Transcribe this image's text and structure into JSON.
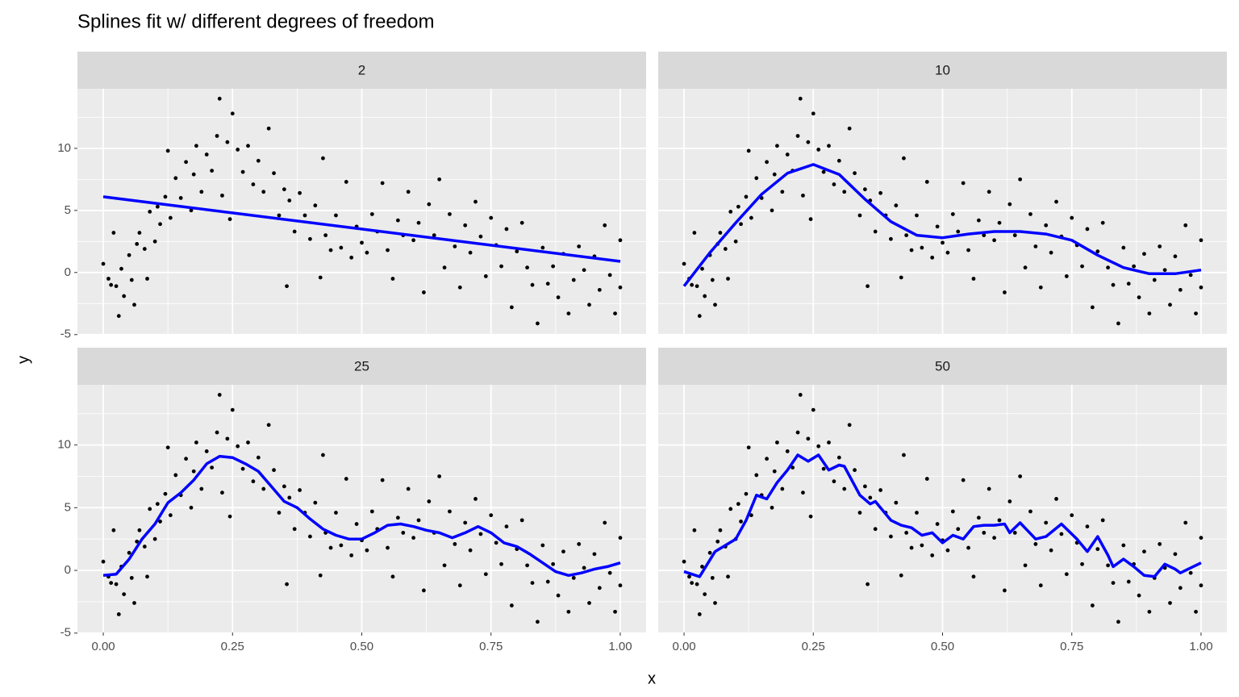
{
  "chart_data": {
    "type": "scatter",
    "title": "Splines fit w/ different degrees of freedom",
    "xlabel": "x",
    "ylabel": "y",
    "xlim": [
      -0.05,
      1.05
    ],
    "ylim": [
      -4.95,
      14.8
    ],
    "xticks": [
      {
        "value": 0,
        "label": "0.00"
      },
      {
        "value": 0.25,
        "label": "0.25"
      },
      {
        "value": 0.5,
        "label": "0.50"
      },
      {
        "value": 0.75,
        "label": "0.75"
      },
      {
        "value": 1,
        "label": "1.00"
      }
    ],
    "yticks": [
      -5,
      0,
      5,
      10
    ],
    "xminor": [
      0.125,
      0.375,
      0.625,
      0.875
    ],
    "yminor": [
      -2.5,
      2.5,
      7.5,
      12.5
    ],
    "grid": true,
    "point_color": "#000000",
    "line_color": "#0000ff",
    "points": {
      "x": [
        0,
        0.01,
        0.015,
        0.02,
        0.025,
        0.03,
        0.035,
        0.04,
        0.05,
        0.055,
        0.06,
        0.065,
        0.07,
        0.08,
        0.085,
        0.09,
        0.1,
        0.105,
        0.11,
        0.12,
        0.125,
        0.13,
        0.14,
        0.15,
        0.16,
        0.17,
        0.175,
        0.18,
        0.19,
        0.2,
        0.21,
        0.22,
        0.225,
        0.23,
        0.24,
        0.245,
        0.25,
        0.26,
        0.27,
        0.28,
        0.29,
        0.3,
        0.31,
        0.32,
        0.33,
        0.34,
        0.35,
        0.355,
        0.36,
        0.37,
        0.38,
        0.39,
        0.4,
        0.41,
        0.42,
        0.425,
        0.43,
        0.44,
        0.45,
        0.46,
        0.47,
        0.48,
        0.49,
        0.5,
        0.51,
        0.52,
        0.53,
        0.54,
        0.55,
        0.56,
        0.57,
        0.58,
        0.59,
        0.6,
        0.61,
        0.62,
        0.63,
        0.64,
        0.65,
        0.66,
        0.67,
        0.68,
        0.69,
        0.7,
        0.71,
        0.72,
        0.73,
        0.74,
        0.75,
        0.76,
        0.77,
        0.78,
        0.79,
        0.8,
        0.81,
        0.82,
        0.83,
        0.84,
        0.85,
        0.86,
        0.87,
        0.88,
        0.89,
        0.9,
        0.91,
        0.92,
        0.93,
        0.94,
        0.95,
        0.96,
        0.97,
        0.98,
        0.99,
        1,
        1
      ],
      "y": [
        0.7,
        -0.5,
        -1,
        3.2,
        -1.1,
        -3.5,
        0.3,
        -1.9,
        1.4,
        -0.6,
        -2.6,
        2.3,
        3.2,
        1.9,
        -0.5,
        4.9,
        2.5,
        5.3,
        3.9,
        6.1,
        9.8,
        4.4,
        7.6,
        6,
        8.9,
        5,
        7.9,
        10.2,
        6.5,
        9.5,
        8.2,
        11,
        14,
        6.2,
        10.5,
        4.3,
        12.8,
        9.9,
        8.1,
        10.2,
        7.1,
        9,
        6.5,
        11.6,
        8,
        4.6,
        6.7,
        -1.1,
        5.8,
        3.3,
        6.4,
        4.6,
        2.7,
        5.4,
        -0.4,
        9.2,
        3,
        1.8,
        4.6,
        2,
        7.3,
        1.2,
        3.7,
        2.4,
        1.6,
        4.7,
        3.3,
        7.2,
        1.8,
        -0.5,
        4.2,
        3,
        6.5,
        2.6,
        4,
        -1.6,
        5.5,
        3,
        7.5,
        0.4,
        4.7,
        2.1,
        -1.2,
        3.8,
        1.6,
        5.7,
        2.9,
        -0.3,
        4.4,
        2.2,
        0.5,
        3.5,
        -2.8,
        1.7,
        4,
        0.4,
        -1,
        -4.1,
        2,
        -0.9,
        0.5,
        -2,
        1.5,
        -3.3,
        -0.6,
        2.1,
        0.2,
        -2.6,
        1.3,
        -1.4,
        3.8,
        -0.2,
        -3.3,
        2.6,
        -1.2
      ]
    },
    "panels": [
      {
        "label": "2",
        "fit": {
          "x": [
            0,
            1
          ],
          "y": [
            6.1,
            0.9
          ]
        }
      },
      {
        "label": "10",
        "fit": {
          "x": [
            0,
            0.05,
            0.1,
            0.15,
            0.2,
            0.25,
            0.3,
            0.35,
            0.4,
            0.45,
            0.5,
            0.55,
            0.6,
            0.65,
            0.7,
            0.75,
            0.8,
            0.85,
            0.9,
            0.95,
            1
          ],
          "y": [
            -1.1,
            1.6,
            4,
            6.3,
            8,
            8.7,
            7.9,
            5.9,
            4.1,
            3,
            2.8,
            3.1,
            3.3,
            3.3,
            3.1,
            2.6,
            1.4,
            0.4,
            -0.1,
            -0.1,
            0.2
          ]
        }
      },
      {
        "label": "25",
        "fit": {
          "x": [
            0,
            0.025,
            0.05,
            0.075,
            0.1,
            0.125,
            0.15,
            0.175,
            0.2,
            0.225,
            0.25,
            0.275,
            0.3,
            0.325,
            0.35,
            0.375,
            0.4,
            0.425,
            0.45,
            0.475,
            0.5,
            0.525,
            0.55,
            0.575,
            0.6,
            0.625,
            0.65,
            0.675,
            0.7,
            0.725,
            0.75,
            0.775,
            0.8,
            0.825,
            0.85,
            0.875,
            0.9,
            0.925,
            0.95,
            0.975,
            1
          ],
          "y": [
            -0.4,
            -0.3,
            0.9,
            2.5,
            3.7,
            5.4,
            6.2,
            7.2,
            8.5,
            9.1,
            9,
            8.5,
            7.9,
            6.7,
            5.5,
            5,
            4.1,
            3.3,
            2.8,
            2.5,
            2.5,
            3,
            3.6,
            3.7,
            3.5,
            3.2,
            3,
            2.6,
            3,
            3.5,
            3,
            2.2,
            1.9,
            1.3,
            0.6,
            -0.1,
            -0.4,
            -0.2,
            0.1,
            0.3,
            0.6
          ]
        }
      },
      {
        "label": "50",
        "fit": {
          "x": [
            0,
            0.03,
            0.06,
            0.08,
            0.1,
            0.12,
            0.14,
            0.16,
            0.18,
            0.2,
            0.22,
            0.24,
            0.26,
            0.28,
            0.3,
            0.31,
            0.34,
            0.36,
            0.37,
            0.4,
            0.42,
            0.44,
            0.46,
            0.48,
            0.5,
            0.52,
            0.54,
            0.56,
            0.58,
            0.6,
            0.62,
            0.63,
            0.65,
            0.68,
            0.7,
            0.73,
            0.76,
            0.78,
            0.8,
            0.82,
            0.83,
            0.85,
            0.87,
            0.89,
            0.91,
            0.93,
            0.95,
            0.96,
            0.98,
            1
          ],
          "y": [
            -0.1,
            -0.5,
            1.5,
            2,
            2.5,
            4,
            6,
            5.7,
            7,
            8,
            9.2,
            8.7,
            9.2,
            8,
            8.4,
            8.3,
            6,
            5.3,
            5.5,
            4,
            3.6,
            3.4,
            2.8,
            3,
            2.2,
            2.8,
            2.5,
            3.5,
            3.6,
            3.6,
            3.7,
            3,
            3.8,
            2.5,
            2.7,
            3.7,
            2.5,
            1.5,
            2.7,
            1.2,
            0.3,
            0.9,
            0.3,
            -0.4,
            -0.5,
            0.5,
            0.1,
            -0.2,
            0.2,
            0.6
          ]
        }
      }
    ]
  }
}
